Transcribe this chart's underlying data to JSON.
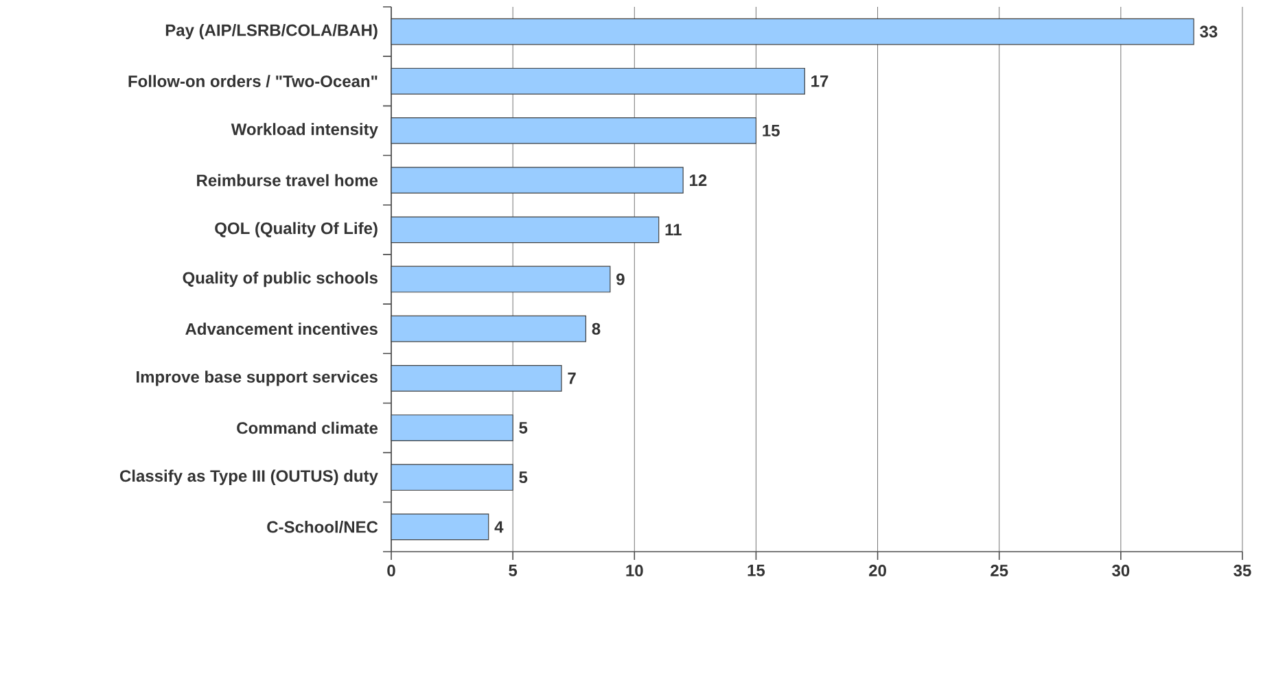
{
  "chart_data": {
    "type": "bar",
    "orientation": "horizontal",
    "categories": [
      "Pay (AIP/LSRB/COLA/BAH)",
      "Follow-on orders / \"Two-Ocean\"",
      "Workload intensity",
      "Reimburse travel home",
      "QOL (Quality Of Life)",
      "Quality of public schools",
      "Advancement incentives",
      "Improve base support services",
      "Command climate",
      "Classify as Type III (OUTUS) duty",
      "C-School/NEC"
    ],
    "values": [
      33,
      17,
      15,
      12,
      11,
      9,
      8,
      7,
      5,
      5,
      4
    ],
    "color": "#99ccff",
    "xlim": [
      0,
      35
    ],
    "xticks": [
      0,
      5,
      10,
      15,
      20,
      25,
      30,
      35
    ],
    "grid": "x",
    "data_labels": true
  }
}
